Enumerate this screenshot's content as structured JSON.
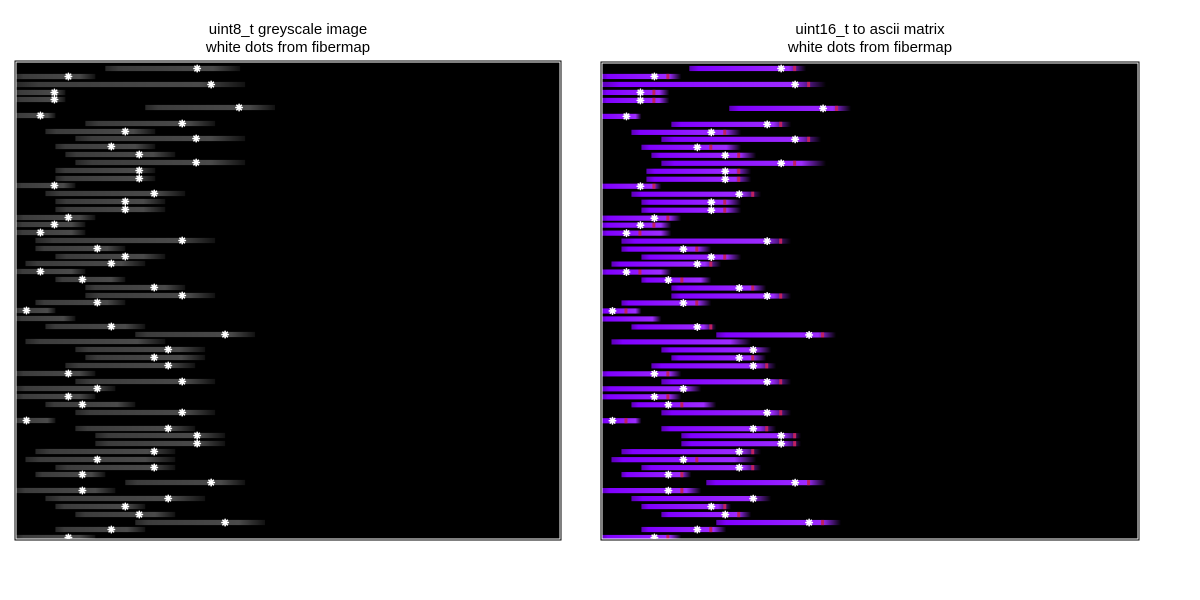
{
  "chart_data": [
    {
      "type": "heatmap",
      "title": "uint8_t greyscale image",
      "subtitle": "white dots from fibermap",
      "xlabel": "",
      "ylabel": "",
      "colors": {
        "background": "#000000",
        "strip": "#3c3c3c",
        "dot": "#ffffff",
        "frame": "#000000"
      },
      "xlim": [
        0,
        546
      ],
      "ylim": [
        0,
        478
      ],
      "grid": false,
      "rows": [
        {
          "y": 7,
          "x0": 90,
          "x1": 225,
          "dots": [
            182
          ]
        },
        {
          "y": 15,
          "x0": 0,
          "x1": 80,
          "dots": [
            53
          ]
        },
        {
          "y": 23,
          "x0": 0,
          "x1": 230,
          "dots": [
            196
          ]
        },
        {
          "y": 31,
          "x0": 0,
          "x1": 50,
          "dots": [
            39
          ]
        },
        {
          "y": 38,
          "x0": 0,
          "x1": 50,
          "dots": [
            39
          ]
        },
        {
          "y": 46,
          "x0": 130,
          "x1": 260,
          "dots": [
            224
          ]
        },
        {
          "y": 54,
          "x0": 0,
          "x1": 40,
          "dots": [
            25
          ]
        },
        {
          "y": 62,
          "x0": 70,
          "x1": 200,
          "dots": [
            167
          ]
        },
        {
          "y": 70,
          "x0": 30,
          "x1": 140,
          "dots": [
            110
          ]
        },
        {
          "y": 77,
          "x0": 60,
          "x1": 230,
          "dots": [
            181
          ]
        },
        {
          "y": 85,
          "x0": 40,
          "x1": 140,
          "dots": [
            96
          ]
        },
        {
          "y": 93,
          "x0": 50,
          "x1": 160,
          "dots": [
            124
          ]
        },
        {
          "y": 101,
          "x0": 60,
          "x1": 230,
          "dots": [
            181
          ]
        },
        {
          "y": 109,
          "x0": 40,
          "x1": 140,
          "dots": [
            124
          ]
        },
        {
          "y": 117,
          "x0": 40,
          "x1": 140,
          "dots": [
            124
          ]
        },
        {
          "y": 124,
          "x0": 0,
          "x1": 60,
          "dots": [
            39
          ]
        },
        {
          "y": 132,
          "x0": 30,
          "x1": 170,
          "dots": [
            139
          ]
        },
        {
          "y": 140,
          "x0": 40,
          "x1": 150,
          "dots": [
            110
          ]
        },
        {
          "y": 148,
          "x0": 40,
          "x1": 150,
          "dots": [
            110
          ]
        },
        {
          "y": 156,
          "x0": 0,
          "x1": 80,
          "dots": [
            53
          ]
        },
        {
          "y": 163,
          "x0": 0,
          "x1": 70,
          "dots": [
            39
          ]
        },
        {
          "y": 171,
          "x0": 0,
          "x1": 70,
          "dots": [
            25
          ]
        },
        {
          "y": 179,
          "x0": 20,
          "x1": 200,
          "dots": [
            167
          ]
        },
        {
          "y": 187,
          "x0": 20,
          "x1": 110,
          "dots": [
            82
          ]
        },
        {
          "y": 195,
          "x0": 40,
          "x1": 150,
          "dots": [
            110
          ]
        },
        {
          "y": 202,
          "x0": 10,
          "x1": 130,
          "dots": [
            96
          ]
        },
        {
          "y": 210,
          "x0": 0,
          "x1": 70,
          "dots": [
            25
          ]
        },
        {
          "y": 218,
          "x0": 40,
          "x1": 110,
          "dots": [
            67
          ]
        },
        {
          "y": 226,
          "x0": 70,
          "x1": 170,
          "dots": [
            139
          ]
        },
        {
          "y": 234,
          "x0": 70,
          "x1": 200,
          "dots": [
            167
          ]
        },
        {
          "y": 241,
          "x0": 20,
          "x1": 110,
          "dots": [
            82
          ]
        },
        {
          "y": 249,
          "x0": 0,
          "x1": 40,
          "dots": [
            11
          ]
        },
        {
          "y": 257,
          "x0": 0,
          "x1": 60,
          "dots": []
        },
        {
          "y": 265,
          "x0": 30,
          "x1": 130,
          "dots": [
            96
          ]
        },
        {
          "y": 273,
          "x0": 120,
          "x1": 240,
          "dots": [
            210
          ]
        },
        {
          "y": 280,
          "x0": 10,
          "x1": 150,
          "dots": []
        },
        {
          "y": 288,
          "x0": 60,
          "x1": 190,
          "dots": [
            153
          ]
        },
        {
          "y": 296,
          "x0": 70,
          "x1": 190,
          "dots": [
            139
          ]
        },
        {
          "y": 304,
          "x0": 50,
          "x1": 180,
          "dots": [
            153
          ]
        },
        {
          "y": 312,
          "x0": 0,
          "x1": 80,
          "dots": [
            53
          ]
        },
        {
          "y": 320,
          "x0": 60,
          "x1": 200,
          "dots": [
            167
          ]
        },
        {
          "y": 327,
          "x0": 0,
          "x1": 100,
          "dots": [
            82
          ]
        },
        {
          "y": 335,
          "x0": 0,
          "x1": 80,
          "dots": [
            53
          ]
        },
        {
          "y": 343,
          "x0": 30,
          "x1": 120,
          "dots": [
            67
          ]
        },
        {
          "y": 351,
          "x0": 60,
          "x1": 200,
          "dots": [
            167
          ]
        },
        {
          "y": 359,
          "x0": 0,
          "x1": 40,
          "dots": [
            11
          ]
        },
        {
          "y": 367,
          "x0": 60,
          "x1": 180,
          "dots": [
            153
          ]
        },
        {
          "y": 374,
          "x0": 80,
          "x1": 210,
          "dots": [
            182
          ]
        },
        {
          "y": 382,
          "x0": 80,
          "x1": 210,
          "dots": [
            182
          ]
        },
        {
          "y": 390,
          "x0": 20,
          "x1": 160,
          "dots": [
            139
          ]
        },
        {
          "y": 398,
          "x0": 10,
          "x1": 160,
          "dots": [
            82
          ]
        },
        {
          "y": 406,
          "x0": 40,
          "x1": 160,
          "dots": [
            139
          ]
        },
        {
          "y": 413,
          "x0": 20,
          "x1": 90,
          "dots": [
            67
          ]
        },
        {
          "y": 421,
          "x0": 110,
          "x1": 230,
          "dots": [
            196
          ]
        },
        {
          "y": 429,
          "x0": 0,
          "x1": 100,
          "dots": [
            67
          ]
        },
        {
          "y": 437,
          "x0": 30,
          "x1": 190,
          "dots": [
            153
          ]
        },
        {
          "y": 445,
          "x0": 40,
          "x1": 130,
          "dots": [
            110
          ]
        },
        {
          "y": 453,
          "x0": 60,
          "x1": 160,
          "dots": [
            124
          ]
        },
        {
          "y": 461,
          "x0": 120,
          "x1": 250,
          "dots": [
            210
          ]
        },
        {
          "y": 468,
          "x0": 40,
          "x1": 130,
          "dots": [
            96
          ]
        },
        {
          "y": 476,
          "x0": 0,
          "x1": 80,
          "dots": [
            53
          ]
        }
      ]
    },
    {
      "type": "heatmap",
      "title": "uint16_t to ascii matrix",
      "subtitle": "white dots from fibermap",
      "xlabel": "",
      "ylabel": "",
      "colors": {
        "background": "#000000",
        "strip": "#8000ff",
        "strip_bright": "#9d2bff",
        "strip_dark": "#5a00b3",
        "hotspot": "#c02060",
        "dot": "#ffffff",
        "frame": "#000000"
      },
      "xlim": [
        0,
        538
      ],
      "ylim": [
        0,
        478
      ],
      "grid": false,
      "rows": [
        {
          "y": 6,
          "x0": 88,
          "x1": 205,
          "dots": [
            180
          ]
        },
        {
          "y": 14,
          "x0": 0,
          "x1": 80,
          "dots": [
            53
          ]
        },
        {
          "y": 22,
          "x0": 0,
          "x1": 225,
          "dots": [
            194
          ]
        },
        {
          "y": 30,
          "x0": 0,
          "x1": 68,
          "dots": [
            39
          ]
        },
        {
          "y": 38,
          "x0": 0,
          "x1": 68,
          "dots": [
            39
          ]
        },
        {
          "y": 46,
          "x0": 128,
          "x1": 250,
          "dots": [
            222
          ]
        },
        {
          "y": 54,
          "x0": 0,
          "x1": 40,
          "dots": [
            25
          ]
        },
        {
          "y": 62,
          "x0": 70,
          "x1": 190,
          "dots": [
            166
          ]
        },
        {
          "y": 70,
          "x0": 30,
          "x1": 140,
          "dots": [
            110
          ]
        },
        {
          "y": 77,
          "x0": 60,
          "x1": 220,
          "dots": [
            194
          ]
        },
        {
          "y": 85,
          "x0": 40,
          "x1": 140,
          "dots": [
            96
          ]
        },
        {
          "y": 93,
          "x0": 50,
          "x1": 155,
          "dots": [
            124
          ]
        },
        {
          "y": 101,
          "x0": 60,
          "x1": 225,
          "dots": [
            180
          ]
        },
        {
          "y": 109,
          "x0": 45,
          "x1": 150,
          "dots": [
            124
          ]
        },
        {
          "y": 117,
          "x0": 45,
          "x1": 150,
          "dots": [
            124
          ]
        },
        {
          "y": 124,
          "x0": 0,
          "x1": 60,
          "dots": [
            39
          ]
        },
        {
          "y": 132,
          "x0": 30,
          "x1": 160,
          "dots": [
            138
          ]
        },
        {
          "y": 140,
          "x0": 40,
          "x1": 140,
          "dots": [
            110
          ]
        },
        {
          "y": 148,
          "x0": 40,
          "x1": 140,
          "dots": [
            110
          ]
        },
        {
          "y": 156,
          "x0": 0,
          "x1": 80,
          "dots": [
            53
          ]
        },
        {
          "y": 163,
          "x0": 0,
          "x1": 70,
          "dots": [
            39
          ]
        },
        {
          "y": 171,
          "x0": 0,
          "x1": 70,
          "dots": [
            25
          ]
        },
        {
          "y": 179,
          "x0": 20,
          "x1": 190,
          "dots": [
            166
          ]
        },
        {
          "y": 187,
          "x0": 20,
          "x1": 110,
          "dots": [
            82
          ]
        },
        {
          "y": 195,
          "x0": 40,
          "x1": 140,
          "dots": [
            110
          ]
        },
        {
          "y": 202,
          "x0": 10,
          "x1": 120,
          "dots": [
            96
          ]
        },
        {
          "y": 210,
          "x0": 0,
          "x1": 70,
          "dots": [
            25
          ]
        },
        {
          "y": 218,
          "x0": 40,
          "x1": 110,
          "dots": [
            67
          ]
        },
        {
          "y": 226,
          "x0": 70,
          "x1": 165,
          "dots": [
            138
          ]
        },
        {
          "y": 234,
          "x0": 70,
          "x1": 190,
          "dots": [
            166
          ]
        },
        {
          "y": 241,
          "x0": 20,
          "x1": 110,
          "dots": [
            82
          ]
        },
        {
          "y": 249,
          "x0": 0,
          "x1": 40,
          "dots": [
            11
          ]
        },
        {
          "y": 257,
          "x0": 0,
          "x1": 60,
          "dots": []
        },
        {
          "y": 265,
          "x0": 30,
          "x1": 115,
          "dots": [
            96
          ]
        },
        {
          "y": 273,
          "x0": 115,
          "x1": 235,
          "dots": [
            208
          ]
        },
        {
          "y": 280,
          "x0": 10,
          "x1": 150,
          "dots": []
        },
        {
          "y": 288,
          "x0": 60,
          "x1": 170,
          "dots": [
            152
          ]
        },
        {
          "y": 296,
          "x0": 70,
          "x1": 165,
          "dots": [
            138
          ]
        },
        {
          "y": 304,
          "x0": 50,
          "x1": 175,
          "dots": [
            152
          ]
        },
        {
          "y": 312,
          "x0": 0,
          "x1": 80,
          "dots": [
            53
          ]
        },
        {
          "y": 320,
          "x0": 60,
          "x1": 190,
          "dots": [
            166
          ]
        },
        {
          "y": 327,
          "x0": 0,
          "x1": 100,
          "dots": [
            82
          ]
        },
        {
          "y": 335,
          "x0": 0,
          "x1": 80,
          "dots": [
            53
          ]
        },
        {
          "y": 343,
          "x0": 30,
          "x1": 115,
          "dots": [
            67
          ]
        },
        {
          "y": 351,
          "x0": 60,
          "x1": 190,
          "dots": [
            166
          ]
        },
        {
          "y": 359,
          "x0": 0,
          "x1": 40,
          "dots": [
            11
          ]
        },
        {
          "y": 367,
          "x0": 60,
          "x1": 175,
          "dots": [
            152
          ]
        },
        {
          "y": 374,
          "x0": 80,
          "x1": 200,
          "dots": [
            180
          ]
        },
        {
          "y": 382,
          "x0": 80,
          "x1": 200,
          "dots": [
            180
          ]
        },
        {
          "y": 390,
          "x0": 20,
          "x1": 160,
          "dots": [
            138
          ]
        },
        {
          "y": 398,
          "x0": 10,
          "x1": 155,
          "dots": [
            82
          ]
        },
        {
          "y": 406,
          "x0": 40,
          "x1": 160,
          "dots": [
            138
          ]
        },
        {
          "y": 413,
          "x0": 20,
          "x1": 90,
          "dots": [
            67
          ]
        },
        {
          "y": 421,
          "x0": 105,
          "x1": 225,
          "dots": [
            194
          ]
        },
        {
          "y": 429,
          "x0": 0,
          "x1": 100,
          "dots": [
            67
          ]
        },
        {
          "y": 437,
          "x0": 30,
          "x1": 170,
          "dots": [
            152
          ]
        },
        {
          "y": 445,
          "x0": 40,
          "x1": 130,
          "dots": [
            110
          ]
        },
        {
          "y": 453,
          "x0": 60,
          "x1": 150,
          "dots": [
            124
          ]
        },
        {
          "y": 461,
          "x0": 115,
          "x1": 240,
          "dots": [
            208
          ]
        },
        {
          "y": 468,
          "x0": 40,
          "x1": 125,
          "dots": [
            96
          ]
        },
        {
          "y": 476,
          "x0": 0,
          "x1": 80,
          "dots": [
            53
          ]
        }
      ]
    }
  ]
}
